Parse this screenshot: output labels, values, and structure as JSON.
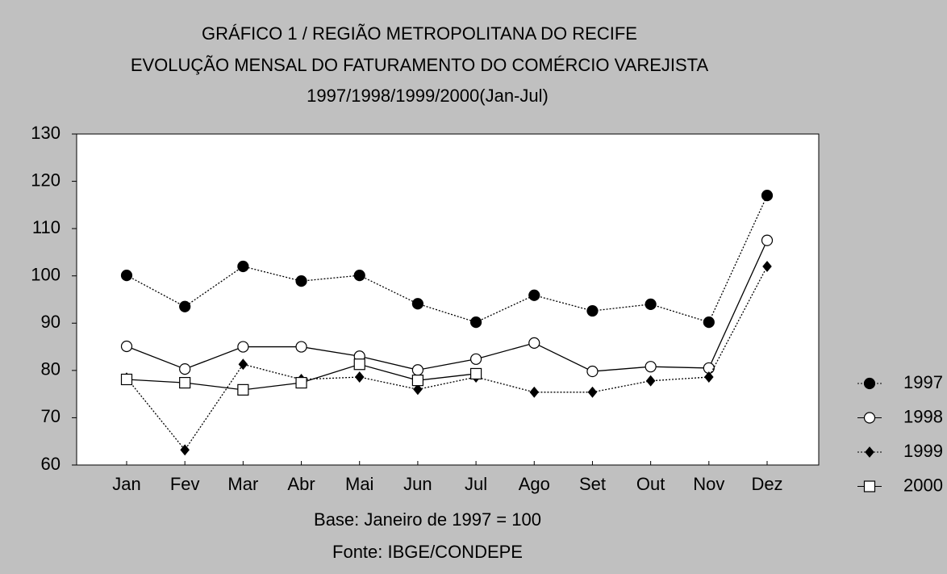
{
  "chart_data": {
    "type": "line",
    "title": "GRÁFICO 1   /   REGIÃO METROPOLITANA DO RECIFE",
    "subtitle": "EVOLUÇÃO MENSAL DO FATURAMENTO DO COMÉRCIO VAREJISTA",
    "period": "1997/1998/1999/2000(Jan-Jul)",
    "note": "Base: Janeiro de 1997 = 100",
    "source": "Fonte: IBGE/CONDEPE",
    "categories": [
      "Jan",
      "Fev",
      "Mar",
      "Abr",
      "Mai",
      "Jun",
      "Jul",
      "Ago",
      "Set",
      "Out",
      "Nov",
      "Dez"
    ],
    "series": [
      {
        "name": "1997",
        "color": "#000000",
        "line": "dotted",
        "marker": "circle-filled",
        "values": [
          100.1,
          93.5,
          102,
          98.9,
          100.1,
          94.1,
          90.2,
          95.9,
          92.6,
          94,
          90.2,
          117
        ]
      },
      {
        "name": "1998",
        "color": "#000000",
        "line": "solid",
        "marker": "circle-open",
        "values": [
          85.1,
          80.3,
          85,
          85,
          83,
          80.1,
          82.4,
          85.8,
          79.8,
          80.8,
          80.5,
          107.5
        ]
      },
      {
        "name": "1999",
        "color": "#000000",
        "line": "dotted",
        "marker": "diamond-filled",
        "values": [
          78.4,
          63.2,
          81.3,
          78.1,
          78.6,
          76,
          78.6,
          75.4,
          75.4,
          77.8,
          78.6,
          102
        ]
      },
      {
        "name": "2000",
        "color": "#000000",
        "line": "solid",
        "marker": "square-open",
        "values": [
          78.1,
          77.4,
          75.9,
          77.4,
          81.3,
          77.9,
          79.3,
          null,
          null,
          null,
          null,
          null
        ]
      }
    ],
    "ylim": [
      60,
      130
    ],
    "yticks": [
      60,
      70,
      80,
      90,
      100,
      110,
      120,
      130
    ],
    "grid": false,
    "legend": "right"
  }
}
